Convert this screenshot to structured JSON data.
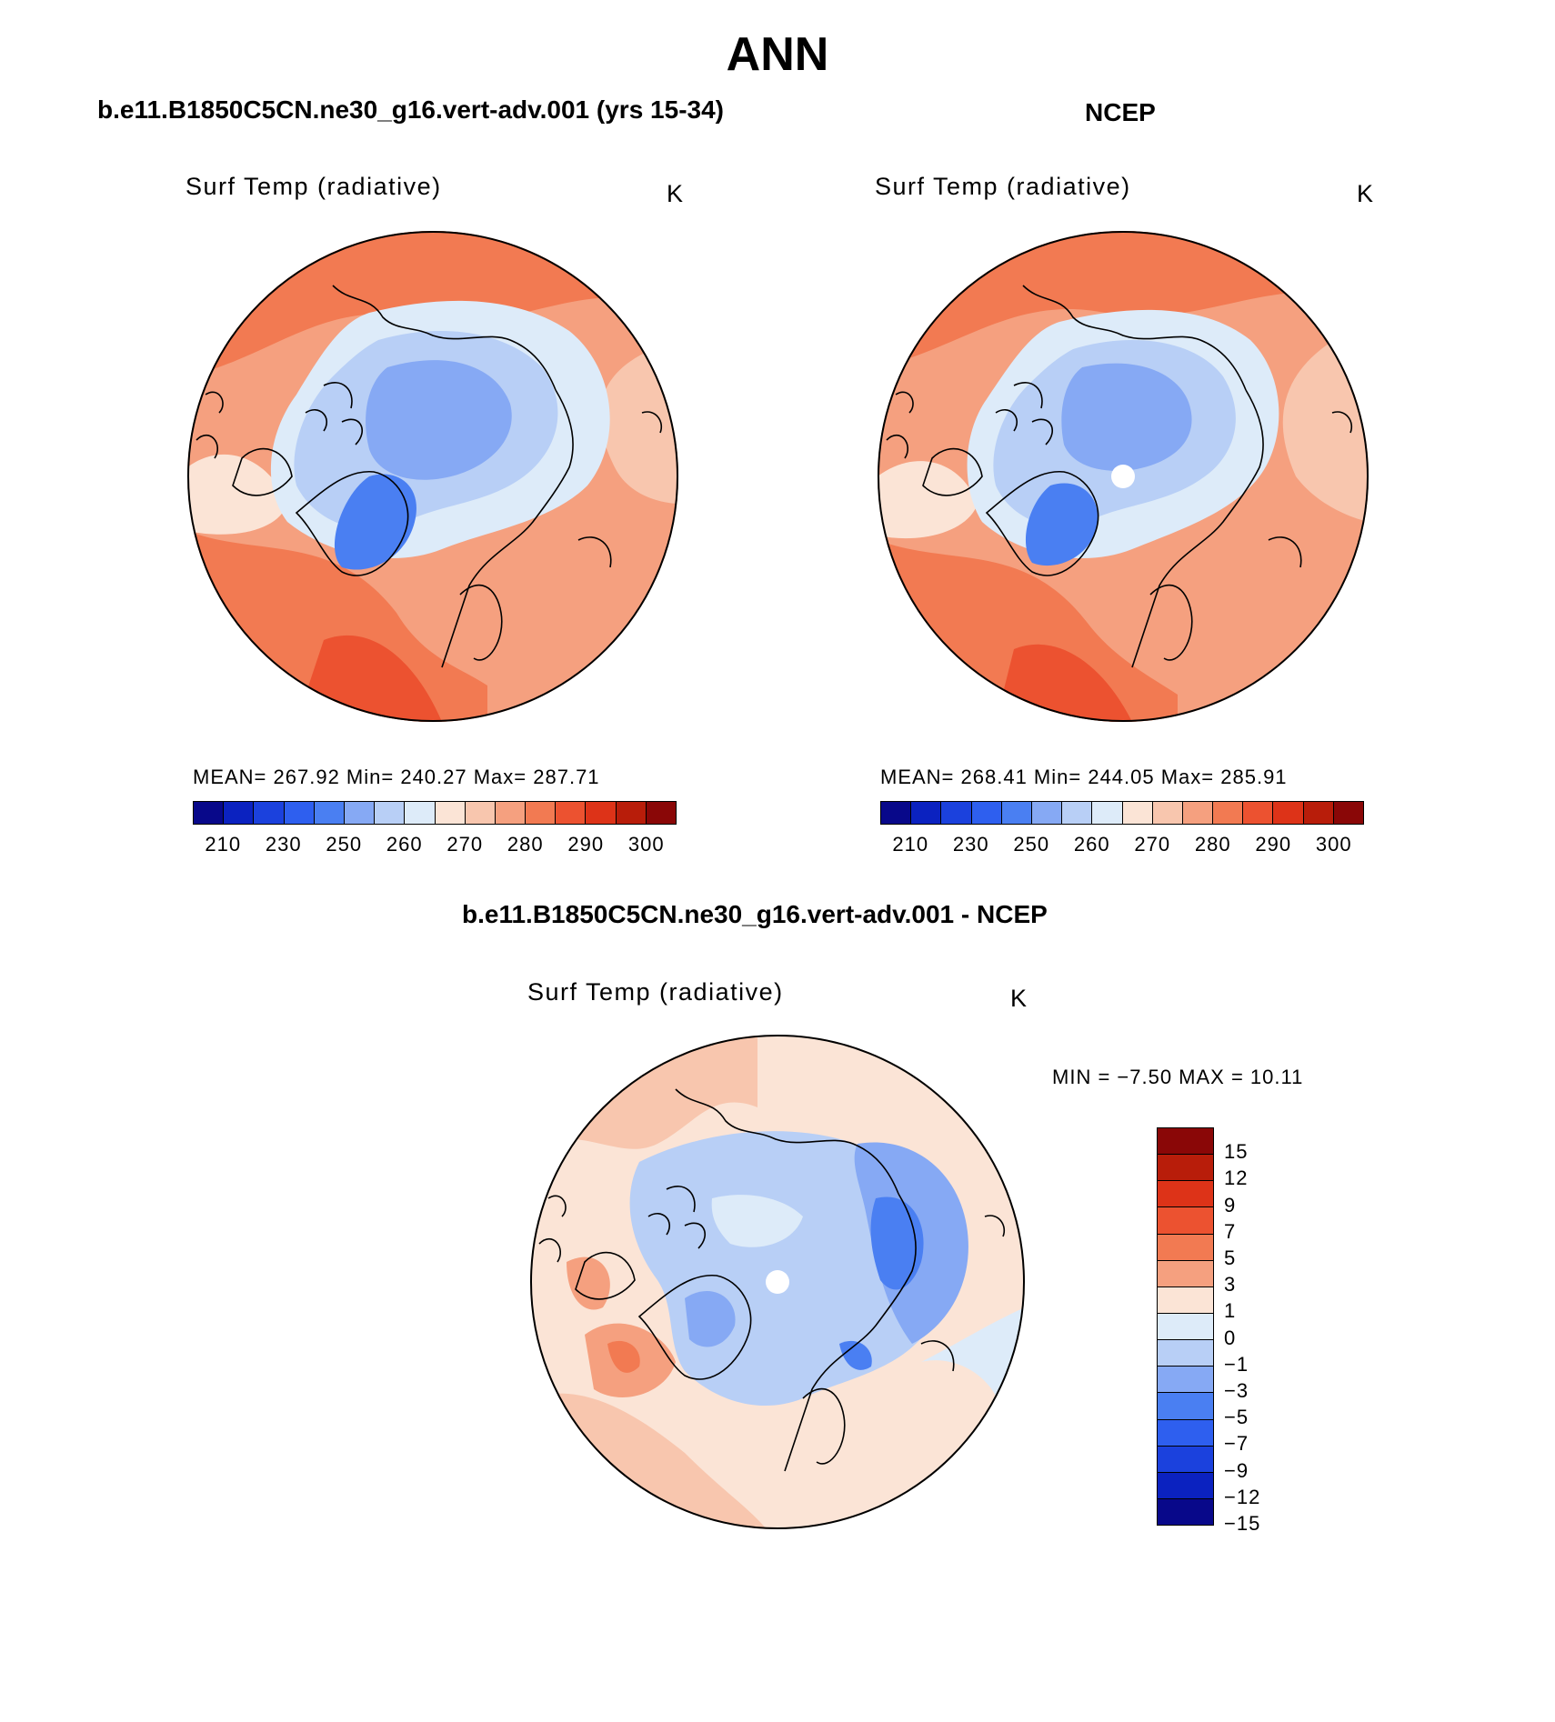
{
  "main_title": "ANN",
  "panels": {
    "model": {
      "title": "b.e11.B1850C5CN.ne30_g16.vert-adv.001 (yrs 15-34)",
      "variable": "Surf Temp (radiative)",
      "units": "K",
      "stats": "MEAN= 267.92   Min= 240.27   Max= 287.71"
    },
    "obs": {
      "title": "NCEP",
      "variable": "Surf Temp (radiative)",
      "units": "K",
      "stats": "MEAN= 268.41   Min= 244.05   Max= 285.91"
    },
    "diff": {
      "title": "b.e11.B1850C5CN.ne30_g16.vert-adv.001 - NCEP",
      "variable": "Surf Temp (radiative)",
      "units": "K",
      "minmax": "MIN =   −7.50 MAX =   10.11"
    }
  },
  "colorbar_abs": {
    "colors": [
      "#08088a",
      "#0b22c0",
      "#1b41dd",
      "#2e5fef",
      "#4a7ff2",
      "#86a9f4",
      "#b8cff6",
      "#ddebf9",
      "#fbe4d6",
      "#f8c6ae",
      "#f5a07f",
      "#f27a52",
      "#ec5230",
      "#dd3318",
      "#b81d0a",
      "#8a0707"
    ],
    "ticks": [
      "210",
      "230",
      "250",
      "260",
      "270",
      "280",
      "290",
      "300"
    ]
  },
  "colorbar_diff": {
    "colors": [
      "#8a0707",
      "#b81d0a",
      "#dd3318",
      "#ec5230",
      "#f27a52",
      "#f5a07f",
      "#fbe4d6",
      "#ddebf9",
      "#b8cff6",
      "#86a9f4",
      "#4a7ff2",
      "#2e5fef",
      "#1b41dd",
      "#0b22c0",
      "#08088a"
    ],
    "ticks": [
      "15",
      "12",
      "9",
      "7",
      "5",
      "3",
      "1",
      "0",
      "−1",
      "−3",
      "−5",
      "−7",
      "−9",
      "−12",
      "−15"
    ]
  }
}
